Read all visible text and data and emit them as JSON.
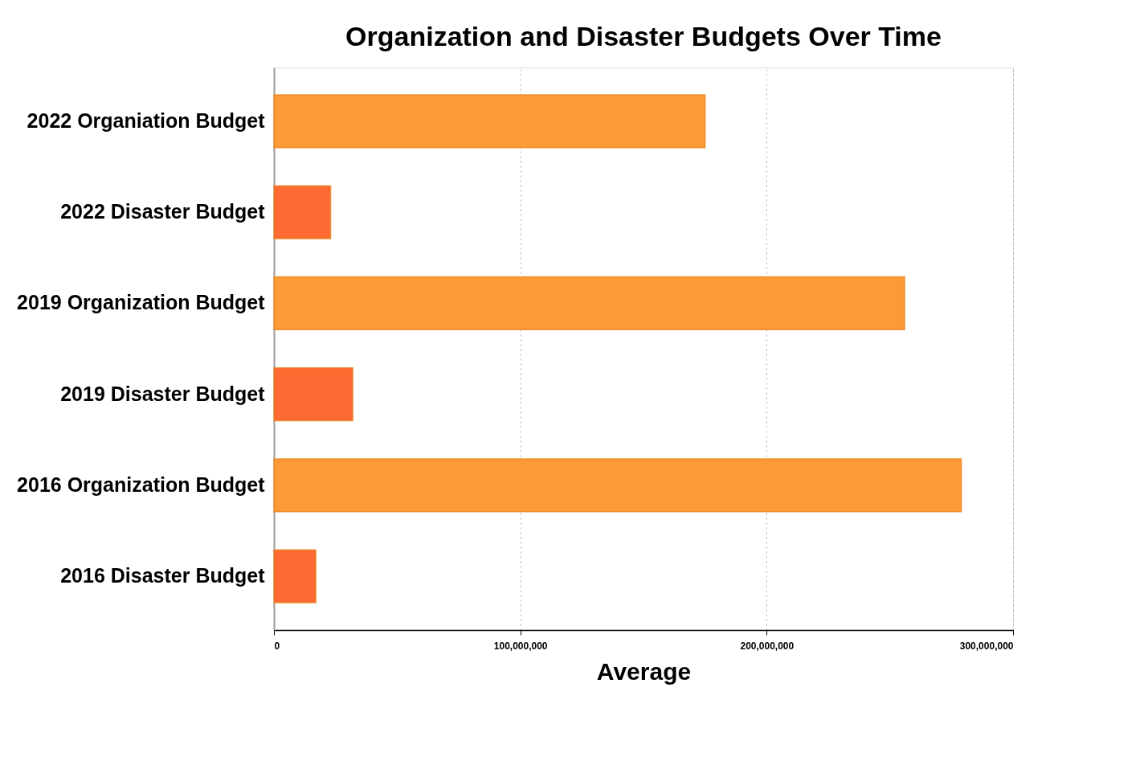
{
  "chart_data": {
    "type": "bar",
    "orientation": "horizontal",
    "title": "Organization and Disaster Budgets Over Time",
    "xlabel": "Average",
    "categories": [
      "2022 Organiation Budget",
      "2022 Disaster Budget",
      "2019 Organization Budget",
      "2019 Disaster Budget",
      "2016 Organization Budget",
      "2016 Disaster Budget"
    ],
    "values": [
      175000000,
      23000000,
      256000000,
      32000000,
      279000000,
      17000000
    ],
    "colors": [
      "#fd9a37",
      "#ff6a33",
      "#fd9a37",
      "#ff6a33",
      "#fd9a37",
      "#ff6a33"
    ],
    "xlim": [
      0,
      300000000
    ],
    "xticks": [
      0,
      {
        "value": 100000000,
        "label": "100,000,000"
      },
      {
        "value": 200000000,
        "label": "200,000,000"
      },
      {
        "value": 300000000,
        "label": "300,000,000"
      }
    ],
    "grid": "x",
    "legend": false
  }
}
